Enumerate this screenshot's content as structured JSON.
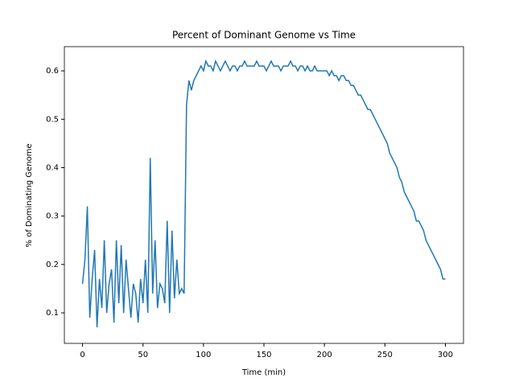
{
  "chart_data": {
    "type": "line",
    "title": "Percent of Dominant Genome vs Time",
    "x_label": "Time (min)",
    "y_label": "% of Dominating Genome",
    "xlim": [
      -15,
      315
    ],
    "ylim": [
      0.037,
      0.65
    ],
    "xticks": [
      0,
      50,
      100,
      150,
      200,
      250,
      300
    ],
    "yticks": [
      0.1,
      0.2,
      0.3,
      0.4,
      0.5,
      0.6
    ],
    "grid": false,
    "series": [
      {
        "color": "#1f77b4",
        "x": [
          0,
          2,
          4,
          6,
          8,
          10,
          12,
          14,
          16,
          18,
          20,
          22,
          24,
          26,
          28,
          30,
          32,
          34,
          36,
          38,
          40,
          42,
          44,
          46,
          48,
          50,
          52,
          54,
          56,
          58,
          60,
          62,
          64,
          66,
          68,
          70,
          72,
          74,
          76,
          78,
          80,
          82,
          84,
          86,
          88,
          90,
          92,
          94,
          96,
          98,
          100,
          102,
          104,
          106,
          108,
          110,
          112,
          114,
          116,
          118,
          120,
          122,
          124,
          126,
          128,
          130,
          132,
          134,
          136,
          138,
          140,
          142,
          144,
          146,
          148,
          150,
          152,
          154,
          156,
          158,
          160,
          162,
          164,
          166,
          168,
          170,
          172,
          174,
          176,
          178,
          180,
          182,
          184,
          186,
          188,
          190,
          192,
          194,
          196,
          198,
          200,
          202,
          204,
          206,
          208,
          210,
          212,
          214,
          216,
          218,
          220,
          222,
          224,
          226,
          228,
          230,
          232,
          234,
          236,
          238,
          240,
          242,
          244,
          246,
          248,
          250,
          252,
          254,
          256,
          258,
          260,
          262,
          264,
          266,
          268,
          270,
          272,
          274,
          276,
          278,
          280,
          282,
          284,
          286,
          288,
          290,
          292,
          294,
          296,
          298,
          300
        ],
        "values": [
          0.16,
          0.21,
          0.32,
          0.09,
          0.17,
          0.23,
          0.07,
          0.17,
          0.11,
          0.25,
          0.1,
          0.16,
          0.19,
          0.08,
          0.25,
          0.12,
          0.24,
          0.1,
          0.21,
          0.15,
          0.09,
          0.16,
          0.14,
          0.08,
          0.17,
          0.12,
          0.21,
          0.1,
          0.42,
          0.14,
          0.25,
          0.11,
          0.16,
          0.15,
          0.12,
          0.29,
          0.1,
          0.27,
          0.13,
          0.21,
          0.14,
          0.15,
          0.14,
          0.53,
          0.58,
          0.56,
          0.58,
          0.59,
          0.6,
          0.61,
          0.6,
          0.62,
          0.61,
          0.61,
          0.6,
          0.62,
          0.61,
          0.6,
          0.61,
          0.62,
          0.61,
          0.6,
          0.61,
          0.61,
          0.6,
          0.61,
          0.61,
          0.62,
          0.61,
          0.61,
          0.61,
          0.61,
          0.62,
          0.61,
          0.61,
          0.61,
          0.6,
          0.61,
          0.62,
          0.61,
          0.61,
          0.61,
          0.6,
          0.61,
          0.61,
          0.61,
          0.62,
          0.61,
          0.61,
          0.6,
          0.61,
          0.61,
          0.6,
          0.61,
          0.6,
          0.6,
          0.61,
          0.6,
          0.6,
          0.6,
          0.6,
          0.6,
          0.59,
          0.6,
          0.59,
          0.59,
          0.58,
          0.59,
          0.59,
          0.58,
          0.58,
          0.57,
          0.57,
          0.56,
          0.55,
          0.55,
          0.54,
          0.53,
          0.52,
          0.52,
          0.51,
          0.5,
          0.49,
          0.48,
          0.47,
          0.46,
          0.45,
          0.43,
          0.42,
          0.41,
          0.4,
          0.38,
          0.37,
          0.35,
          0.34,
          0.33,
          0.32,
          0.31,
          0.29,
          0.29,
          0.28,
          0.27,
          0.25,
          0.24,
          0.23,
          0.22,
          0.21,
          0.2,
          0.19,
          0.17,
          0.17
        ]
      }
    ]
  }
}
